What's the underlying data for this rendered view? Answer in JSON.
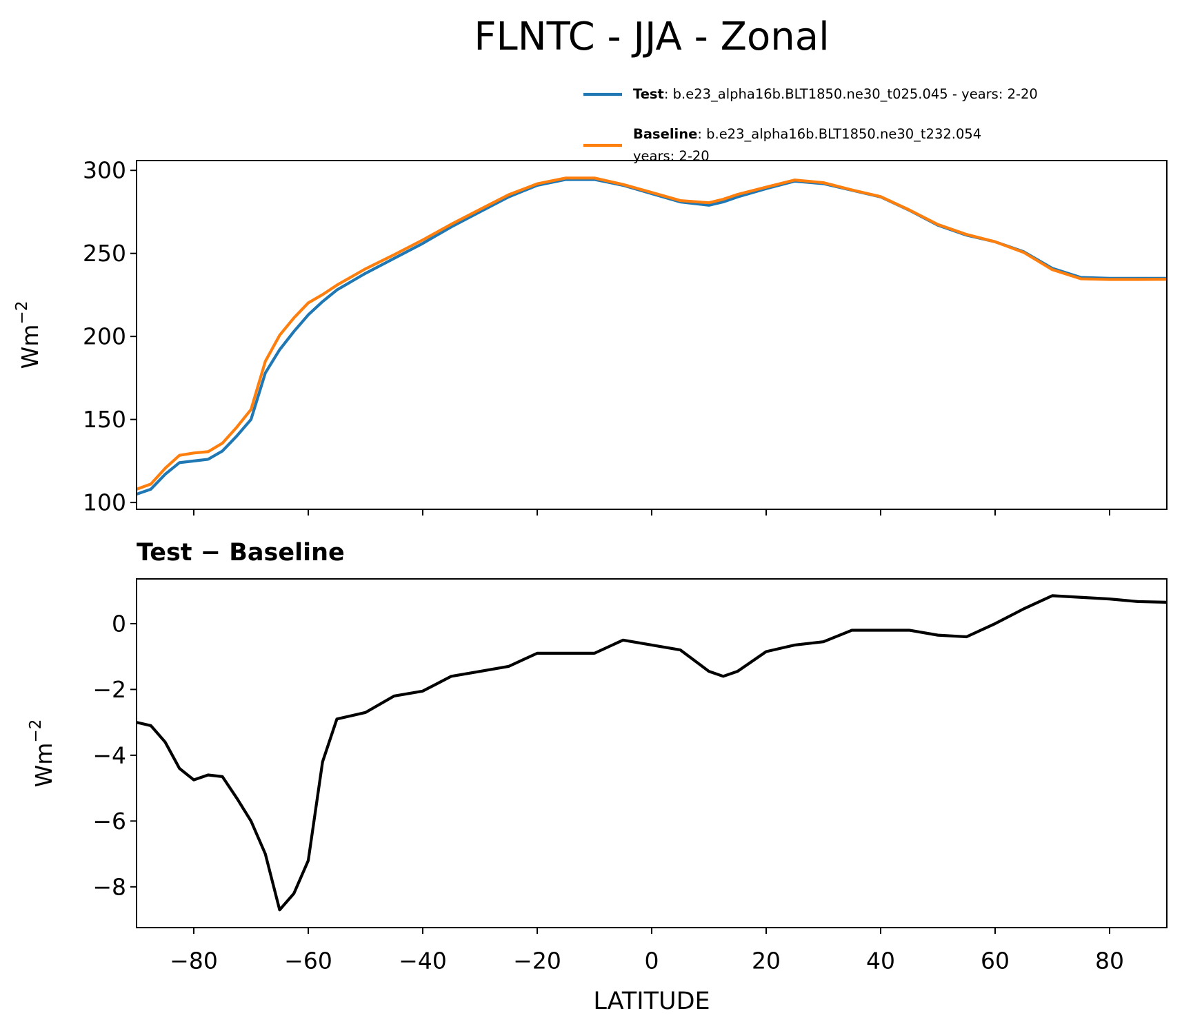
{
  "title": "FLNTC - JJA - Zonal",
  "chart_data": [
    {
      "type": "line",
      "ylabel": "Wm",
      "ylabel_exponent": "−2",
      "x": [
        -90,
        -87.5,
        -85,
        -82.5,
        -80,
        -77.5,
        -75,
        -72.5,
        -70,
        -67.5,
        -65,
        -62.5,
        -60,
        -57.5,
        -55,
        -50,
        -45,
        -40,
        -35,
        -30,
        -25,
        -20,
        -15,
        -10,
        -5,
        0,
        5,
        10,
        12.5,
        15,
        20,
        25,
        30,
        35,
        40,
        45,
        50,
        55,
        60,
        65,
        70,
        75,
        80,
        85,
        90
      ],
      "series": [
        {
          "name": "Test",
          "description": [
            ": b.e23_alpha16b.BLT1850.ne30_t025.045 - years: 2-20"
          ],
          "color": "#1f77b4",
          "values": [
            105,
            108,
            117,
            124,
            125,
            126,
            131,
            140,
            150,
            178,
            192,
            203,
            213,
            221,
            228,
            238,
            247,
            256,
            266,
            275,
            284,
            291,
            294.5,
            294.5,
            291,
            286,
            281,
            279,
            281,
            284,
            289,
            293.5,
            292,
            288,
            284,
            276,
            267,
            261,
            257,
            251,
            241,
            235.5,
            235,
            235,
            235
          ]
        },
        {
          "name": "Baseline",
          "description": [
            ": b.e23_alpha16b.BLT1850.ne30_t232.054",
            "years: 2-20"
          ],
          "color": "#ff7f0e",
          "values": [
            108,
            111.1,
            120.6,
            128.4,
            129.8,
            130.6,
            135.7,
            145.3,
            156,
            185,
            200.7,
            211.2,
            220.2,
            225.2,
            230.9,
            240.7,
            249.2,
            258.1,
            267.6,
            276.5,
            285.3,
            291.9,
            295.4,
            295.4,
            291.5,
            286.7,
            281.8,
            280.5,
            282.6,
            285.5,
            289.9,
            294.2,
            292.6,
            288.2,
            284.2,
            276.2,
            267.4,
            261.4,
            257,
            250.6,
            240.2,
            234.7,
            234.3,
            234.3,
            234.4
          ]
        }
      ],
      "xlim": [
        -90,
        90
      ],
      "xticks": [
        -80,
        -60,
        -40,
        -20,
        0,
        20,
        40,
        60,
        80
      ],
      "ylim": [
        95.9,
        305.9
      ],
      "yticks": [
        100,
        150,
        200,
        250,
        300
      ]
    },
    {
      "type": "line",
      "title": "Test − Baseline",
      "xlabel": "LATITUDE",
      "ylabel": "Wm",
      "ylabel_exponent": "−2",
      "x": [
        -90,
        -87.5,
        -85,
        -82.5,
        -80,
        -77.5,
        -75,
        -72.5,
        -70,
        -67.5,
        -65,
        -62.5,
        -60,
        -57.5,
        -55,
        -50,
        -45,
        -40,
        -35,
        -30,
        -25,
        -20,
        -15,
        -10,
        -5,
        0,
        5,
        10,
        12.5,
        15,
        20,
        25,
        30,
        35,
        40,
        45,
        50,
        55,
        60,
        65,
        70,
        75,
        80,
        85,
        90
      ],
      "series": [
        {
          "color": "#000000",
          "values": [
            -3.0,
            -3.1,
            -3.6,
            -4.4,
            -4.75,
            -4.6,
            -4.65,
            -5.3,
            -6.0,
            -7.0,
            -8.7,
            -8.2,
            -7.2,
            -4.2,
            -2.9,
            -2.7,
            -2.2,
            -2.05,
            -1.6,
            -1.45,
            -1.3,
            -0.9,
            -0.9,
            -0.9,
            -0.5,
            -0.65,
            -0.8,
            -1.45,
            -1.6,
            -1.45,
            -0.85,
            -0.65,
            -0.55,
            -0.2,
            -0.2,
            -0.2,
            -0.35,
            -0.4,
            0.0,
            0.45,
            0.85,
            0.8,
            0.75,
            0.67,
            0.65
          ]
        }
      ],
      "xlim": [
        -90,
        90
      ],
      "xticks": [
        {
          "value": -80,
          "label": "−80"
        },
        {
          "value": -60,
          "label": "−60"
        },
        {
          "value": -40,
          "label": "−40"
        },
        {
          "value": -20,
          "label": "−20"
        },
        0,
        20,
        40,
        60,
        80
      ],
      "ylim": [
        -9.24,
        1.36
      ],
      "yticks": [
        {
          "value": -8,
          "label": "−8"
        },
        {
          "value": -6,
          "label": "−6"
        },
        {
          "value": -4,
          "label": "−4"
        },
        {
          "value": -2,
          "label": "−2"
        },
        0
      ]
    }
  ]
}
